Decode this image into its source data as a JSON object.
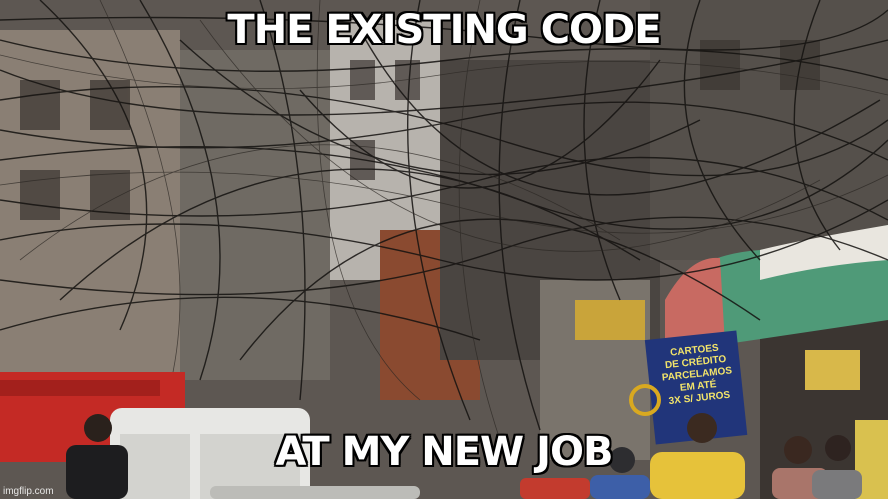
{
  "meme": {
    "top_text": "THE EXISTING CODE",
    "bottom_text": "AT MY NEW JOB"
  },
  "photo": {
    "sign_lines": [
      "CARTOES",
      "DE CRÉDITO",
      "PARCELAMOS",
      "EM ATÉ",
      "3X S/ JUROS"
    ]
  },
  "watermark": "imgflip.com"
}
